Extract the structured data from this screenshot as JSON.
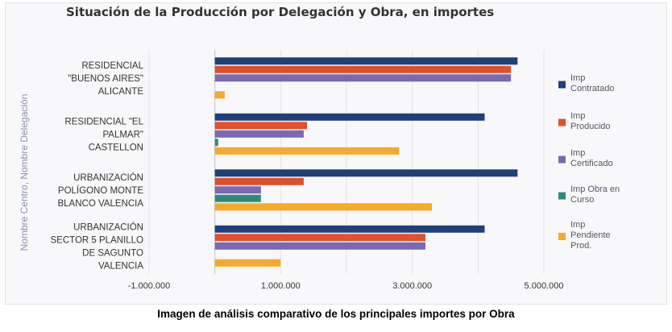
{
  "chart_data": {
    "type": "bar",
    "orientation": "horizontal",
    "title": "Situación de la Producción por Delegación y Obra, en importes",
    "ylabel": "Nombre Centro, Nombre Delegación",
    "xlabel": "",
    "xlim": [
      -1000000,
      5000000
    ],
    "xticks": [
      "-1.000.000",
      "1.000.000",
      "3.000.000",
      "5.000.000"
    ],
    "xtick_values": [
      -1000000,
      1000000,
      3000000,
      5000000
    ],
    "grid": true,
    "legend_position": "right",
    "categories": [
      [
        "RESIDENCIAL",
        "\"BUENOS AIRES\"",
        "ALICANTE"
      ],
      [
        "RESIDENCIAL \"EL",
        "PALMAR\"",
        "CASTELLON"
      ],
      [
        "URBANIZACIÓN",
        "POLÍGONO MONTE",
        "BLANCO VALENCIA"
      ],
      [
        "URBANIZACIÓN",
        "SECTOR 5 PLANILLO",
        "DE SAGUNTO",
        "VALENCIA"
      ]
    ],
    "series": [
      {
        "name": [
          "Imp",
          "Contratado"
        ],
        "color": "#1f3f7a",
        "values": [
          4600000,
          4100000,
          4600000,
          4100000
        ]
      },
      {
        "name": [
          "Imp",
          "Producido"
        ],
        "color": "#e0502a",
        "values": [
          4500000,
          1400000,
          1350000,
          3200000
        ]
      },
      {
        "name": [
          "Imp",
          "Certificado"
        ],
        "color": "#7a68b0",
        "values": [
          4500000,
          1350000,
          700000,
          3200000
        ]
      },
      {
        "name": [
          "Imp Obra en",
          "Curso"
        ],
        "color": "#2e8a78",
        "values": [
          0,
          50000,
          700000,
          0
        ]
      },
      {
        "name": [
          "Imp",
          "Pendiente",
          "Prod."
        ],
        "color": "#f7a928",
        "values": [
          150000,
          2800000,
          3300000,
          1000000
        ]
      }
    ]
  },
  "caption": "Imagen de análisis comparativo de los principales importes por Obra"
}
